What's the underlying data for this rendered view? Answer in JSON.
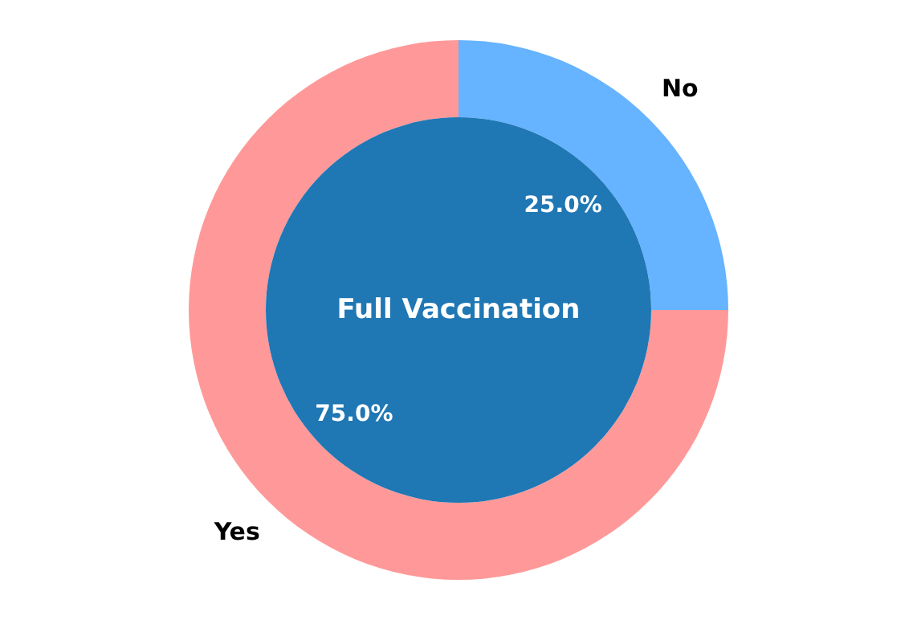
{
  "chart_data": {
    "type": "donut",
    "categories": [
      "No",
      "Yes"
    ],
    "values": [
      25,
      75
    ],
    "colors": [
      "#66b3ff",
      "#ff9999"
    ],
    "value_labels": [
      "25.0%",
      "75.0%"
    ],
    "annotations": [
      "Full Vaccination"
    ]
  }
}
